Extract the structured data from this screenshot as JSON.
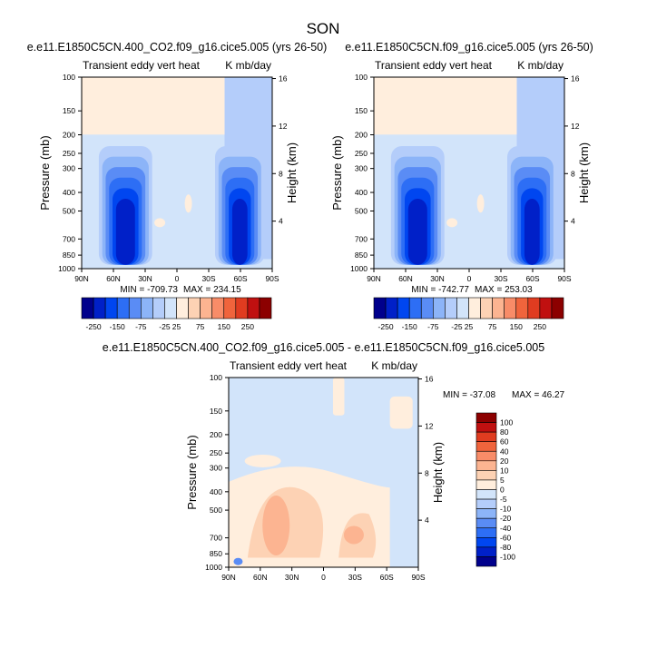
{
  "page_title": "SON",
  "chart_data": [
    {
      "type": "heatmap",
      "title": "e.e11.E1850C5CN.400_CO2.f09_g16.cice5.005 (yrs 26-50)",
      "left_string": "Transient eddy vert heat",
      "right_string": "K mb/day",
      "ylabel": "Pressure (mb)",
      "ylabel_right": "Height (km)",
      "x_ticks": [
        "90N",
        "60N",
        "30N",
        "0",
        "30S",
        "60S",
        "90S"
      ],
      "y_ticks": [
        "100",
        "150",
        "200",
        "250",
        "300",
        "400",
        "500",
        "700",
        "850",
        "1000"
      ],
      "y_ticks_right": [
        "16",
        "12",
        "8",
        "4"
      ],
      "ylim": [
        1000,
        100
      ],
      "min_label": "MIN = -709.73",
      "max_label": "MAX = 234.15",
      "colorbar_labels": [
        "-250",
        "-150",
        "-75",
        "-25",
        "25",
        "75",
        "150",
        "250"
      ],
      "colorbar_colors": [
        "#00008c",
        "#0020c8",
        "#0046f0",
        "#2d6ef5",
        "#5a8cf5",
        "#8cb4f8",
        "#b4cdfa",
        "#d2e4fa",
        "#ffeedd",
        "#fdd2b4",
        "#fcb491",
        "#f88c68",
        "#f0643c",
        "#e03c20",
        "#c01010",
        "#8c0000"
      ]
    },
    {
      "type": "heatmap",
      "title": "e.e11.E1850C5CN.f09_g16.cice5.005 (yrs 26-50)",
      "left_string": "Transient eddy vert heat",
      "right_string": "K mb/day",
      "ylabel": "Pressure (mb)",
      "ylabel_right": "Height (km)",
      "x_ticks": [
        "90N",
        "60N",
        "30N",
        "0",
        "30S",
        "60S",
        "90S"
      ],
      "y_ticks": [
        "100",
        "150",
        "200",
        "250",
        "300",
        "400",
        "500",
        "700",
        "850",
        "1000"
      ],
      "y_ticks_right": [
        "16",
        "12",
        "8",
        "4"
      ],
      "ylim": [
        1000,
        100
      ],
      "min_label": "MIN = -742.77",
      "max_label": "MAX = 253.03",
      "colorbar_labels": [
        "-250",
        "-150",
        "-75",
        "-25",
        "25",
        "75",
        "150",
        "250"
      ],
      "colorbar_colors": [
        "#00008c",
        "#0020c8",
        "#0046f0",
        "#2d6ef5",
        "#5a8cf5",
        "#8cb4f8",
        "#b4cdfa",
        "#d2e4fa",
        "#ffeedd",
        "#fdd2b4",
        "#fcb491",
        "#f88c68",
        "#f0643c",
        "#e03c20",
        "#c01010",
        "#8c0000"
      ]
    },
    {
      "type": "heatmap",
      "title": "e.e11.E1850C5CN.400_CO2.f09_g16.cice5.005 - e.e11.E1850C5CN.f09_g16.cice5.005",
      "left_string": "Transient eddy vert heat",
      "right_string": "K mb/day",
      "ylabel": "Pressure (mb)",
      "ylabel_right": "Height (km)",
      "x_ticks": [
        "90N",
        "60N",
        "30N",
        "0",
        "30S",
        "60S",
        "90S"
      ],
      "y_ticks": [
        "100",
        "150",
        "200",
        "250",
        "300",
        "400",
        "500",
        "700",
        "850",
        "1000"
      ],
      "y_ticks_right": [
        "16",
        "12",
        "8",
        "4"
      ],
      "ylim": [
        1000,
        100
      ],
      "min_label": "MIN = -37.08",
      "max_label": "MAX =  46.27",
      "colorbar_labels": [
        "100",
        "80",
        "60",
        "40",
        "20",
        "10",
        "5",
        "0",
        "-5",
        "-10",
        "-20",
        "-40",
        "-60",
        "-80",
        "-100"
      ],
      "colorbar_colors": [
        "#8c0000",
        "#c01010",
        "#e03c20",
        "#f0643c",
        "#f88c68",
        "#fcb491",
        "#fdd2b4",
        "#ffeedd",
        "#d2e4fa",
        "#b4cdfa",
        "#8cb4f8",
        "#5a8cf5",
        "#2d6ef5",
        "#0046f0",
        "#0020c8",
        "#00008c"
      ]
    }
  ]
}
